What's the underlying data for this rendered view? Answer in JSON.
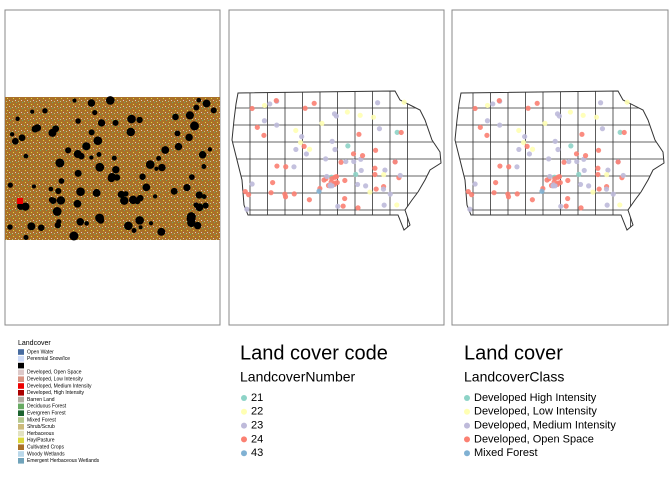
{
  "panels": [
    {
      "legend_title": "Landcover",
      "items": [
        {
          "label": "Open Water",
          "color": "#476ba0"
        },
        {
          "label": "Perennial Snow/Ice",
          "color": "#d1ddf9"
        },
        {
          "label": null,
          "color": "#000000"
        },
        {
          "label": "Developed, Open Space",
          "color": "#ddc9c9"
        },
        {
          "label": "Developed, Low Intensity",
          "color": "#d89382"
        },
        {
          "label": "Developed, Medium Intensity",
          "color": "#ed0000"
        },
        {
          "label": "Developed, High Intensity",
          "color": "#aa0000"
        },
        {
          "label": "Barren Land",
          "color": "#b2ada3"
        },
        {
          "label": "Deciduous Forest",
          "color": "#68aa63"
        },
        {
          "label": "Evergreen Forest",
          "color": "#1c6330"
        },
        {
          "label": "Mixed Forest",
          "color": "#b5c98e"
        },
        {
          "label": "Shrub/Scrub",
          "color": "#ccba7c"
        },
        {
          "label": "Herbaceous",
          "color": "#e2e2c1"
        },
        {
          "label": "Hay/Pasture",
          "color": "#dbd83c"
        },
        {
          "label": "Cultivated Crops",
          "color": "#aa7028"
        },
        {
          "label": "Woody Wetlands",
          "color": "#bad8ea"
        },
        {
          "label": "Emergent Herbaceous Wetlands",
          "color": "#70a3ba"
        }
      ]
    },
    {
      "title": "Land cover code",
      "legend_title": "LandcoverNumber",
      "items": [
        {
          "label": 21,
          "color": "#8dd3c7"
        },
        {
          "label": 22,
          "color": "#ffffb3"
        },
        {
          "label": 23,
          "color": "#bebada"
        },
        {
          "label": 24,
          "color": "#fb8072"
        },
        {
          "label": 43,
          "color": "#80b1d3"
        }
      ]
    },
    {
      "title": "Land cover",
      "legend_title": "LandcoverClass",
      "items": [
        {
          "label": "Developed High Intensity",
          "color": "#8dd3c7"
        },
        {
          "label": "Developed, Low Intensity",
          "color": "#ffffb3"
        },
        {
          "label": "Developed, Medium Intensity",
          "color": "#bebada"
        },
        {
          "label": "Developed, Open Space",
          "color": "#fb8072"
        },
        {
          "label": "Mixed Forest",
          "color": "#80b1d3"
        }
      ]
    }
  ]
}
